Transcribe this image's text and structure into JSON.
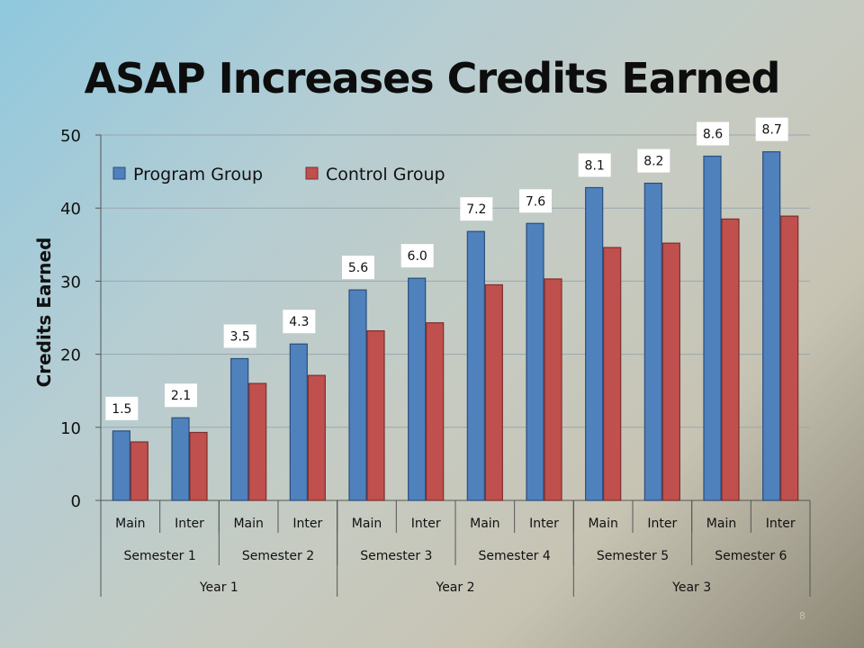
{
  "slide": {
    "title": "ASAP Increases Credits Earned",
    "number": "8"
  },
  "chart_data": {
    "type": "bar",
    "title": "ASAP Increases Credits Earned",
    "ylabel": "Credits Earned",
    "xlabel": "",
    "ylim": [
      0,
      50
    ],
    "yticks": [
      0,
      10,
      20,
      30,
      40,
      50
    ],
    "legend_position": "top-left",
    "grid": true,
    "categories": [
      "Main",
      "Inter",
      "Main",
      "Inter",
      "Main",
      "Inter",
      "Main",
      "Inter",
      "Main",
      "Inter",
      "Main",
      "Inter"
    ],
    "category_groups": [
      {
        "label": "Semester 1",
        "span": 2
      },
      {
        "label": "Semester 2",
        "span": 2
      },
      {
        "label": "Semester 3",
        "span": 2
      },
      {
        "label": "Semester 4",
        "span": 2
      },
      {
        "label": "Semester 5",
        "span": 2
      },
      {
        "label": "Semester 6",
        "span": 2
      }
    ],
    "year_groups": [
      {
        "label": "Year 1",
        "span": 4
      },
      {
        "label": "Year 2",
        "span": 4
      },
      {
        "label": "Year 3",
        "span": 4
      }
    ],
    "series": [
      {
        "name": "Program Group",
        "color": "#4f81bd",
        "stroke": "#2a4e7d",
        "values": [
          9.5,
          11.3,
          19.4,
          21.4,
          28.8,
          30.4,
          36.8,
          37.9,
          42.8,
          43.4,
          47.1,
          47.7
        ]
      },
      {
        "name": "Control Group",
        "color": "#c0504d",
        "stroke": "#7d2e2c",
        "values": [
          8.0,
          9.3,
          16.0,
          17.1,
          23.2,
          24.3,
          29.5,
          30.3,
          34.6,
          35.2,
          38.5,
          38.9
        ]
      }
    ],
    "annotations": [
      "1.5",
      "2.1",
      "3.5",
      "4.3",
      "5.6",
      "6.0",
      "7.2",
      "7.6",
      "8.1",
      "8.2",
      "8.6",
      "8.7"
    ]
  }
}
